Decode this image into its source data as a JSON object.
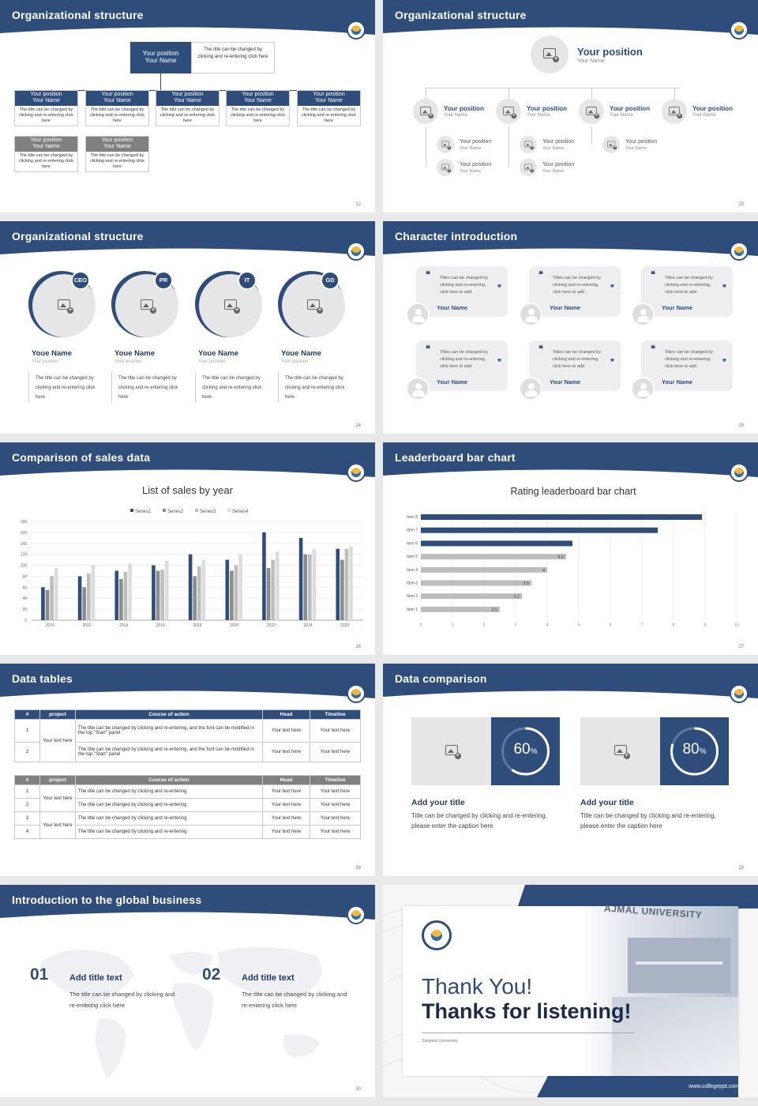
{
  "colors": {
    "navy": "#2e4d7b",
    "gray": "#808080",
    "light": "#c8c8c8"
  },
  "s22": {
    "title": "Organizational structure",
    "page": "22",
    "top": {
      "pos": "Your position",
      "name": "Your Name",
      "desc": "The title can be changed by clicking and re-entering click here"
    },
    "boxes": [
      {
        "pos": "Your position",
        "name": "Your Name",
        "desc": "The title can be changed by clicking and re-entering click here"
      },
      {
        "pos": "Your position",
        "name": "Your Name",
        "desc": "The title can be changed by clicking and re-entering click here"
      },
      {
        "pos": "Your position",
        "name": "Your Name",
        "desc": "The title can be changed by clicking and re-entering click here"
      },
      {
        "pos": "Your position",
        "name": "Your Name",
        "desc": "The title can be changed by clicking and re-entering click here"
      },
      {
        "pos": "Your position",
        "name": "Your Name",
        "desc": "The title can be changed by clicking and re-entering click here"
      },
      {
        "pos": "Your position",
        "name": "Your Name",
        "desc": "The title can be changed by clicking and re-entering click here"
      },
      {
        "pos": "Your position",
        "name": "Your Name",
        "desc": "The title can be changed by clicking and re-entering click here"
      }
    ]
  },
  "s23": {
    "title": "Organizational structure",
    "page": "23",
    "top": {
      "pos": "Your position",
      "name": "Your Name"
    },
    "row": [
      {
        "pos": "Your position",
        "name": "Your Name"
      },
      {
        "pos": "Your position",
        "name": "Your Name"
      },
      {
        "pos": "Your position",
        "name": "Your Name"
      },
      {
        "pos": "Your position",
        "name": "Your Name"
      }
    ],
    "sub": [
      {
        "pos": "Your position",
        "name": "Your Name"
      },
      {
        "pos": "Your position",
        "name": "Your Name"
      },
      {
        "pos": "Your position",
        "name": "Your Name"
      },
      {
        "pos": "Your position",
        "name": "Your Name"
      },
      {
        "pos": "Your position",
        "name": "Your Name"
      }
    ]
  },
  "s24": {
    "title": "Organizational structure",
    "page": "24",
    "people": [
      {
        "badge": "CEO",
        "name": "Youe Name",
        "pos": "Your position",
        "desc": "The title can be changed by clicking and re-entering click here"
      },
      {
        "badge": "PR",
        "name": "Youe Name",
        "pos": "Your position",
        "desc": "The title can be changed by clicking and re-entering click here"
      },
      {
        "badge": "IT",
        "name": "Youe Name",
        "pos": "Your position",
        "desc": "The title can be changed by clicking and re-entering click here"
      },
      {
        "badge": "GD",
        "name": "Youe Name",
        "pos": "Your position",
        "desc": "The title can be changed by clicking and re-entering click here"
      }
    ]
  },
  "s25": {
    "title": "Character introduction",
    "page": "25",
    "quotes": [
      {
        "text": "Titles can be changed by clicking and re-entering, click here to add",
        "name": "Your Name"
      },
      {
        "text": "Titles can be changed by clicking and re-entering, click here to add",
        "name": "Your Name"
      },
      {
        "text": "Titles can be changed by clicking and re-entering, click here to add",
        "name": "Your Name"
      },
      {
        "text": "Titles can be changed by clicking and re-entering, click here to add",
        "name": "Your Name"
      },
      {
        "text": "Titles can be changed by clicking and re-entering, click here to add",
        "name": "Your Name"
      },
      {
        "text": "Titles can be changed by clicking and re-entering, click here to add",
        "name": "Your Name"
      }
    ],
    "open": "❝",
    "close": "❞"
  },
  "s26": {
    "title": "Comparison of sales data",
    "page": "26"
  },
  "s27": {
    "title": "Leaderboard bar chart",
    "page": "27"
  },
  "chart_data": [
    {
      "type": "bar",
      "title": "List of sales by year",
      "categories": [
        "2010",
        "2012",
        "2014",
        "2016",
        "2018",
        "2020",
        "2022",
        "2024",
        "2026"
      ],
      "series": [
        {
          "name": "Series1",
          "color": "#2e4d7b",
          "values": [
            60,
            80,
            90,
            100,
            120,
            110,
            160,
            150,
            130
          ]
        },
        {
          "name": "Series2",
          "color": "#8c8c8c",
          "values": [
            55,
            60,
            75,
            90,
            80,
            90,
            95,
            120,
            110
          ]
        },
        {
          "name": "Series3",
          "color": "#bdbdbd",
          "values": [
            80,
            85,
            88,
            92,
            98,
            100,
            110,
            120,
            130
          ]
        },
        {
          "name": "Series4",
          "color": "#dcdcdc",
          "values": [
            95,
            100,
            103,
            108,
            110,
            120,
            125,
            130,
            135
          ]
        }
      ],
      "ylim": [
        0,
        180
      ],
      "yticks": [
        "0",
        "20",
        "40",
        "60",
        "80",
        "100",
        "120",
        "140",
        "160",
        "180"
      ],
      "legend": "top",
      "grid": true
    },
    {
      "type": "bar",
      "orientation": "horizontal",
      "title": "Rating leaderboard bar chart",
      "categories": [
        "Item 8",
        "Item 7",
        "Item 6",
        "Item 5",
        "Item 4",
        "Item 3",
        "Item 2",
        "Item 1"
      ],
      "values": [
        8.9,
        7.5,
        4.8,
        4.6,
        4,
        3.5,
        3.2,
        2.5
      ],
      "labels": [
        "",
        "",
        "",
        "4.6",
        "4",
        "3.5",
        "3.2",
        "2.5"
      ],
      "colors": [
        "#2e4d7b",
        "#2e4d7b",
        "#2e4d7b",
        "#bdbdbd",
        "#bdbdbd",
        "#bdbdbd",
        "#bdbdbd",
        "#bdbdbd"
      ],
      "xlim": [
        0,
        10
      ],
      "xticks": [
        "0",
        "1",
        "2",
        "3",
        "4",
        "5",
        "6",
        "7",
        "8",
        "9",
        "10"
      ],
      "grid": true
    }
  ],
  "s28": {
    "title": "Data tables",
    "page": "28",
    "t1": {
      "head": [
        "#",
        "project",
        "Course of action",
        "Head",
        "Timeline"
      ],
      "merged": "Your text here",
      "rows": [
        {
          "n": "1",
          "act": "The title can be changed by clicking and re-entering, and the font can be modified in the top \"Start\" panel",
          "head": "Your text here",
          "time": "Your text here"
        },
        {
          "n": "2",
          "act": "The title can be changed by clicking and re-entering, and the font can be modified in the top \"Start\" panel",
          "head": "Your text here",
          "time": "Your text here"
        }
      ]
    },
    "t2": {
      "head": [
        "#",
        "project",
        "Course of action",
        "Head",
        "Timeline"
      ],
      "merged": [
        "Your text here",
        "Your text here"
      ],
      "rows": [
        {
          "n": "1",
          "act": "The title can be changed by clicking and re-entering",
          "head": "Your text here",
          "time": "Your text here"
        },
        {
          "n": "2",
          "act": "The title can be changed by clicking and re-entering",
          "head": "Your text here",
          "time": "Your text here"
        },
        {
          "n": "3",
          "act": "The title can be changed by clicking and re-entering",
          "head": "Your text here",
          "time": "Your text here"
        },
        {
          "n": "4",
          "act": "The title can be changed by clicking and re-entering",
          "head": "Your text here",
          "time": "Your text here"
        }
      ]
    }
  },
  "s29": {
    "title": "Data comparison",
    "page": "29",
    "cards": [
      {
        "pct": 60,
        "num": "60",
        "unit": "%",
        "title": "Add your title",
        "desc": "Title can be changed by clicking and re-entering, please enter the caption here"
      },
      {
        "pct": 80,
        "num": "80",
        "unit": "%",
        "title": "Add your title",
        "desc": "Title can be changed by clicking and re-entering, please enter the caption here"
      }
    ]
  },
  "s30": {
    "title": "Introduction to the global business",
    "page": "30",
    "items": [
      {
        "num": "01",
        "title": "Add title text",
        "desc": "The title can be changed by clicking and re-entering click here"
      },
      {
        "num": "02",
        "title": "Add title text",
        "desc": "The title can be changed by clicking and re-entering click here"
      }
    ]
  },
  "s31": {
    "line1": "Thank You!",
    "line2": "Thanks for listening!",
    "sub": "Sanjmal University",
    "building": "AJMAL UNIVERSITY",
    "url": "www.collegeppt.com"
  }
}
